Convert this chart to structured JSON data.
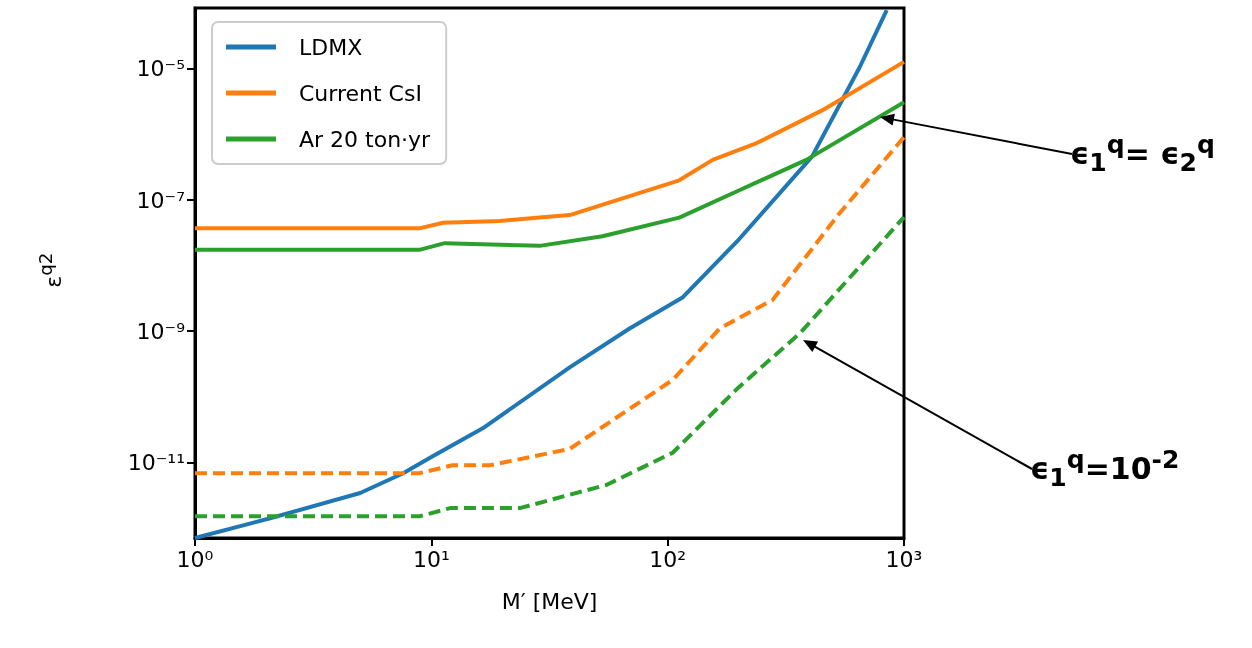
{
  "chart_data": {
    "type": "line",
    "xlabel": "M′ [MeV]",
    "ylabel": "ε$^{q2}$",
    "log": "xy",
    "grid": false,
    "legend": "top left",
    "marker": "none",
    "xlim": [
      1,
      1000
    ],
    "xticks": [
      {
        "value": 1,
        "label": "10⁰"
      },
      {
        "value": 10,
        "label": "10¹"
      },
      {
        "value": 100,
        "label": "10²"
      },
      {
        "value": 1000,
        "label": "10³"
      }
    ],
    "ylim": [
      7e-13,
      8.5e-05
    ],
    "yticks": [
      {
        "value": 1e-11,
        "label": "10⁻¹¹"
      },
      {
        "value": 1e-09,
        "label": "10⁻⁹"
      },
      {
        "value": 1e-07,
        "label": "10⁻⁷"
      },
      {
        "value": 1e-05,
        "label": "10⁻⁵"
      }
    ],
    "series": [
      {
        "name": "LDMX",
        "color": "#1f77b4",
        "line_style": "solid",
        "x": [
          1,
          2.08,
          5,
          7.6,
          10,
          16.5,
          38.5,
          69,
          116,
          200,
          408,
          650,
          845
        ],
        "values": [
          7e-13,
          1.4e-12,
          3.4e-12,
          6.8e-12,
          1.2e-11,
          3.3e-11,
          2.8e-10,
          1.1e-09,
          3.3e-09,
          2.5e-08,
          4.6e-07,
          1.07e-05,
          7.9e-05
        ]
      },
      {
        "name": "Current CsI",
        "color": "#ff7f0e",
        "line_style": "solid",
        "x": [
          1,
          8.9,
          11.2,
          19.5,
          28.7,
          38.5,
          112,
          155,
          238,
          452,
          1000
        ],
        "values": [
          3.7e-08,
          3.7e-08,
          4.5e-08,
          4.8e-08,
          5.4e-08,
          5.9e-08,
          2e-07,
          4.1e-07,
          7.4e-07,
          2.35e-06,
          1.28e-05
        ]
      },
      {
        "name": "Ar 20 ton·yr",
        "color": "#2ca02c",
        "line_style": "solid",
        "x": [
          1,
          8.9,
          11.4,
          28.7,
          53,
          112,
          200,
          386,
          1000
        ],
        "values": [
          1.74e-08,
          1.74e-08,
          2.2e-08,
          2e-08,
          2.8e-08,
          5.4e-08,
          1.4e-07,
          4.1e-07,
          3.1e-06
        ]
      },
      {
        "color": "#ff7f0e",
        "line_style": "dashed",
        "x": [
          1,
          8.9,
          12.3,
          17.7,
          38.5,
          105,
          166,
          278,
          534,
          1000
        ],
        "values": [
          6.8e-12,
          6.8e-12,
          9e-12,
          9e-12,
          1.6e-11,
          1.8e-10,
          1.1e-09,
          3e-09,
          6.3e-08,
          9.1e-07
        ]
      },
      {
        "color": "#2ca02c",
        "line_style": "dashed",
        "x": [
          1,
          8.9,
          12,
          23.7,
          38.5,
          55,
          105,
          200,
          363,
          1000
        ],
        "values": [
          1.5e-12,
          1.5e-12,
          2e-12,
          2e-12,
          3.2e-12,
          4.5e-12,
          1.4e-11,
          1.4e-10,
          9.3e-10,
          5.5e-08
        ]
      }
    ],
    "annotations": [
      "ϵ$_{1}$$^{q}$= ϵ$_{2}$$^{q}$",
      "ϵ$_{1}$$^{q}$=10$^{-2}$"
    ]
  }
}
